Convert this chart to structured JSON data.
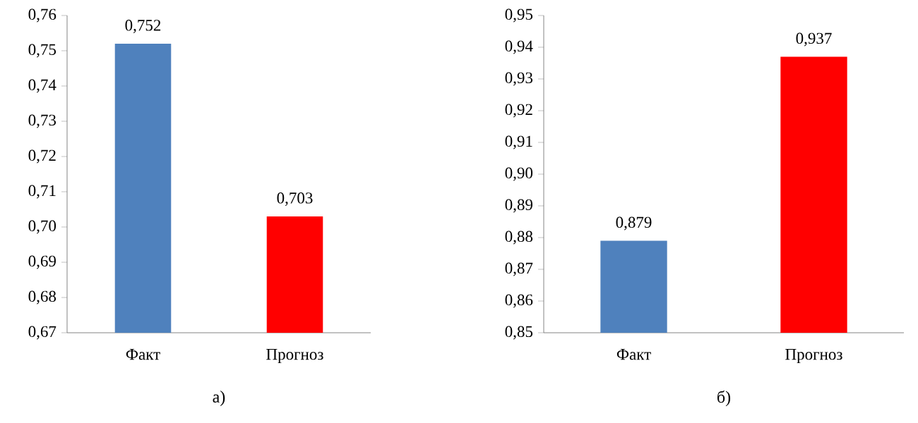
{
  "chart_data": [
    {
      "type": "bar",
      "categories": [
        "Факт",
        "Прогноз"
      ],
      "values": [
        0.752,
        0.703
      ],
      "colors": [
        "#4f81bd",
        "#ff0000"
      ],
      "value_labels": [
        "0,752",
        "0,703"
      ],
      "ylim": [
        0.67,
        0.76
      ],
      "yticks": [
        {
          "value": 0.67,
          "label": "0,67"
        },
        {
          "value": 0.68,
          "label": "0,68"
        },
        {
          "value": 0.69,
          "label": "0,69"
        },
        {
          "value": 0.7,
          "label": "0,70"
        },
        {
          "value": 0.71,
          "label": "0,71"
        },
        {
          "value": 0.72,
          "label": "0,72"
        },
        {
          "value": 0.73,
          "label": "0,73"
        },
        {
          "value": 0.74,
          "label": "0,74"
        },
        {
          "value": 0.75,
          "label": "0,75"
        },
        {
          "value": 0.76,
          "label": "0,76"
        }
      ],
      "annotations": [
        "а)"
      ]
    },
    {
      "type": "bar",
      "categories": [
        "Факт",
        "Прогноз"
      ],
      "values": [
        0.879,
        0.937
      ],
      "colors": [
        "#4f81bd",
        "#ff0000"
      ],
      "value_labels": [
        "0,879",
        "0,937"
      ],
      "ylim": [
        0.85,
        0.95
      ],
      "yticks": [
        {
          "value": 0.85,
          "label": "0,85"
        },
        {
          "value": 0.86,
          "label": "0,86"
        },
        {
          "value": 0.87,
          "label": "0,87"
        },
        {
          "value": 0.88,
          "label": "0,88"
        },
        {
          "value": 0.89,
          "label": "0,89"
        },
        {
          "value": 0.9,
          "label": "0,90"
        },
        {
          "value": 0.91,
          "label": "0,91"
        },
        {
          "value": 0.92,
          "label": "0,92"
        },
        {
          "value": 0.93,
          "label": "0,93"
        },
        {
          "value": 0.94,
          "label": "0,94"
        },
        {
          "value": 0.95,
          "label": "0,95"
        }
      ],
      "annotations": [
        "б)"
      ]
    }
  ]
}
